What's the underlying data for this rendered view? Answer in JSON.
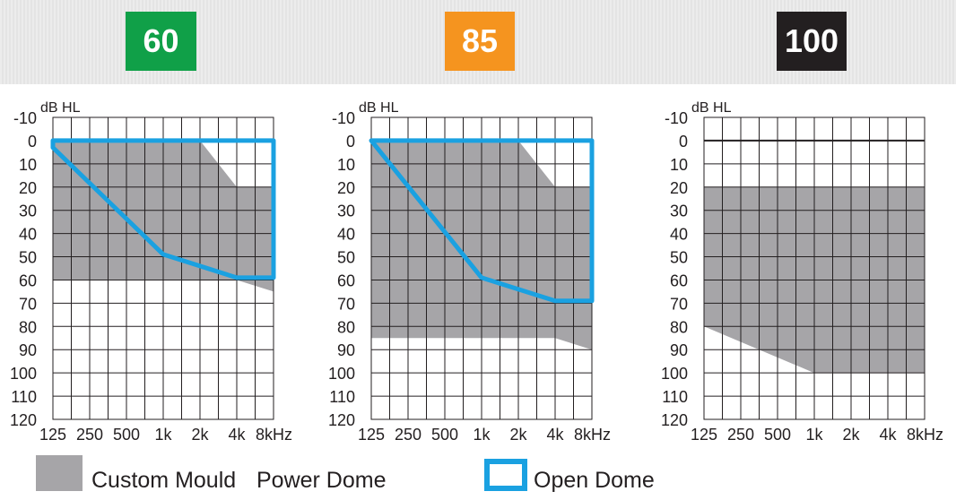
{
  "badges": [
    {
      "label": "60",
      "color": "#10a048"
    },
    {
      "label": "85",
      "color": "#f5941f"
    },
    {
      "label": "100",
      "color": "#231f20"
    }
  ],
  "legend": {
    "items": [
      {
        "label": "Custom Mould",
        "swatch": "fill",
        "color": "#a6a5a8"
      },
      {
        "label": "Power Dome",
        "swatch": "none"
      },
      {
        "label": "Open Dome",
        "swatch": "outline",
        "color": "#1aa1e1"
      }
    ]
  },
  "chart_data": [
    {
      "type": "area",
      "ylabel": "dB HL",
      "x_ticks": [
        "125",
        "250",
        "500",
        "1k",
        "2k",
        "4k",
        "8kHz"
      ],
      "y_ticks": [
        "-10",
        "0",
        "10",
        "20",
        "30",
        "40",
        "50",
        "60",
        "70",
        "80",
        "90",
        "100",
        "110",
        "120"
      ],
      "ylim": [
        -10,
        120
      ],
      "y_inverted": true,
      "grid": true,
      "fill_color": "#a6a5a8",
      "outline_color": "#1aa1e1",
      "regions": [
        {
          "name": "Custom Mould",
          "points": [
            [
              125,
              0
            ],
            [
              2000,
              0
            ],
            [
              4000,
              20
            ],
            [
              8000,
              20
            ],
            [
              8000,
              65
            ],
            [
              4000,
              60
            ],
            [
              125,
              60
            ]
          ]
        }
      ],
      "series": [
        {
          "name": "Open Dome",
          "points": [
            [
              125,
              3
            ],
            [
              1000,
              49
            ],
            [
              4000,
              59
            ],
            [
              8000,
              59
            ],
            [
              8000,
              0
            ],
            [
              125,
              0
            ]
          ]
        }
      ]
    },
    {
      "type": "area",
      "ylabel": "dB HL",
      "x_ticks": [
        "125",
        "250",
        "500",
        "1k",
        "2k",
        "4k",
        "8kHz"
      ],
      "y_ticks": [
        "-10",
        "0",
        "10",
        "20",
        "30",
        "40",
        "50",
        "60",
        "70",
        "80",
        "90",
        "100",
        "110",
        "120"
      ],
      "ylim": [
        -10,
        120
      ],
      "y_inverted": true,
      "grid": true,
      "fill_color": "#a6a5a8",
      "outline_color": "#1aa1e1",
      "regions": [
        {
          "name": "Custom Mould",
          "points": [
            [
              125,
              0
            ],
            [
              2000,
              0
            ],
            [
              4000,
              20
            ],
            [
              8000,
              20
            ],
            [
              8000,
              90
            ],
            [
              4000,
              85
            ],
            [
              125,
              85
            ]
          ]
        }
      ],
      "series": [
        {
          "name": "Open Dome",
          "points": [
            [
              125,
              0
            ],
            [
              1000,
              59
            ],
            [
              4000,
              69
            ],
            [
              8000,
              69
            ],
            [
              8000,
              0
            ],
            [
              125,
              0
            ]
          ]
        }
      ]
    },
    {
      "type": "area",
      "ylabel": "dB HL",
      "x_ticks": [
        "125",
        "250",
        "500",
        "1k",
        "2k",
        "4k",
        "8kHz"
      ],
      "y_ticks": [
        "-10",
        "0",
        "10",
        "20",
        "30",
        "40",
        "50",
        "60",
        "70",
        "80",
        "90",
        "100",
        "110",
        "120"
      ],
      "ylim": [
        -10,
        120
      ],
      "y_inverted": true,
      "grid": true,
      "fill_color": "#a6a5a8",
      "outline_color": "#1aa1e1",
      "regions": [
        {
          "name": "Power Dome",
          "points": [
            [
              125,
              20
            ],
            [
              8000,
              20
            ],
            [
              8000,
              100
            ],
            [
              1000,
              100
            ],
            [
              125,
              80
            ]
          ]
        }
      ],
      "series": []
    }
  ]
}
